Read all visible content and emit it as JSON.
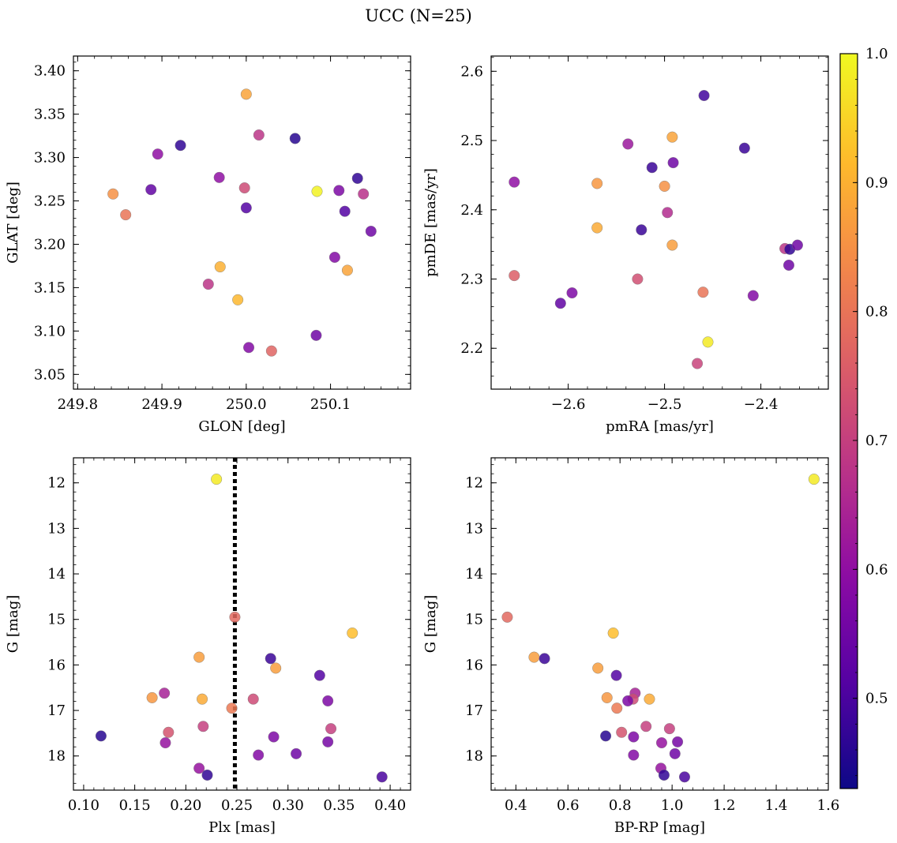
{
  "figure": {
    "title": "UCC (N=25)"
  },
  "colorbar": {
    "colormap": "plasma",
    "range": [
      0.43,
      1.0
    ],
    "ticks": [
      "0.5",
      "0.6",
      "0.7",
      "0.8",
      "0.9",
      "1.0"
    ],
    "tick_values": [
      0.5,
      0.6,
      0.7,
      0.8,
      0.9,
      1.0
    ]
  },
  "chart_data": [
    {
      "type": "scatter",
      "xlabel": "GLON [deg]",
      "ylabel": "GLAT [deg]",
      "xlim": [
        249.795,
        250.195
      ],
      "ylim": [
        3.033,
        3.417
      ],
      "xticks": [
        249.8,
        249.9,
        250.0,
        250.1
      ],
      "xtick_labels": [
        "249.8",
        "249.9",
        "250.0",
        "250.1"
      ],
      "yticks": [
        3.05,
        3.1,
        3.15,
        3.2,
        3.25,
        3.3,
        3.35,
        3.4
      ],
      "ytick_labels": [
        "3.05",
        "3.10",
        "3.15",
        "3.20",
        "3.25",
        "3.30",
        "3.35",
        "3.40"
      ],
      "points": [
        {
          "x": 250.0,
          "y": 3.373,
          "c": 0.88
        },
        {
          "x": 249.922,
          "y": 3.314,
          "c": 0.47
        },
        {
          "x": 250.058,
          "y": 3.322,
          "c": 0.46
        },
        {
          "x": 250.015,
          "y": 3.326,
          "c": 0.68
        },
        {
          "x": 249.895,
          "y": 3.304,
          "c": 0.6
        },
        {
          "x": 249.968,
          "y": 3.277,
          "c": 0.6
        },
        {
          "x": 249.842,
          "y": 3.258,
          "c": 0.85
        },
        {
          "x": 249.887,
          "y": 3.263,
          "c": 0.53
        },
        {
          "x": 249.998,
          "y": 3.265,
          "c": 0.72
        },
        {
          "x": 249.857,
          "y": 3.234,
          "c": 0.8
        },
        {
          "x": 250.0,
          "y": 3.242,
          "c": 0.51
        },
        {
          "x": 250.084,
          "y": 3.261,
          "c": 0.99
        },
        {
          "x": 250.11,
          "y": 3.262,
          "c": 0.57
        },
        {
          "x": 250.132,
          "y": 3.276,
          "c": 0.47
        },
        {
          "x": 250.139,
          "y": 3.258,
          "c": 0.67
        },
        {
          "x": 250.117,
          "y": 3.238,
          "c": 0.51
        },
        {
          "x": 250.148,
          "y": 3.215,
          "c": 0.55
        },
        {
          "x": 250.105,
          "y": 3.185,
          "c": 0.58
        },
        {
          "x": 250.12,
          "y": 3.17,
          "c": 0.88
        },
        {
          "x": 249.969,
          "y": 3.174,
          "c": 0.9
        },
        {
          "x": 249.955,
          "y": 3.154,
          "c": 0.68
        },
        {
          "x": 249.99,
          "y": 3.136,
          "c": 0.91
        },
        {
          "x": 250.083,
          "y": 3.095,
          "c": 0.55
        },
        {
          "x": 250.003,
          "y": 3.081,
          "c": 0.58
        },
        {
          "x": 250.03,
          "y": 3.077,
          "c": 0.77
        }
      ]
    },
    {
      "type": "scatter",
      "xlabel": "pmRA [mas/yr]",
      "ylabel": "pmDE [mas/yr]",
      "xlim": [
        -2.68,
        -2.33
      ],
      "ylim": [
        2.141,
        2.622
      ],
      "xticks": [
        -2.6,
        -2.5,
        -2.4
      ],
      "xtick_labels": [
        "−2.6",
        "−2.5",
        "−2.4"
      ],
      "yticks": [
        2.2,
        2.3,
        2.4,
        2.5,
        2.6
      ],
      "ytick_labels": [
        "2.2",
        "2.3",
        "2.4",
        "2.5",
        "2.6"
      ],
      "points": [
        {
          "x": -2.459,
          "y": 2.565,
          "c": 0.49
        },
        {
          "x": -2.538,
          "y": 2.495,
          "c": 0.62
        },
        {
          "x": -2.492,
          "y": 2.505,
          "c": 0.88
        },
        {
          "x": -2.417,
          "y": 2.489,
          "c": 0.48
        },
        {
          "x": -2.513,
          "y": 2.461,
          "c": 0.48
        },
        {
          "x": -2.491,
          "y": 2.468,
          "c": 0.55
        },
        {
          "x": -2.656,
          "y": 2.44,
          "c": 0.6
        },
        {
          "x": -2.57,
          "y": 2.438,
          "c": 0.86
        },
        {
          "x": -2.5,
          "y": 2.434,
          "c": 0.85
        },
        {
          "x": -2.497,
          "y": 2.396,
          "c": 0.66
        },
        {
          "x": -2.57,
          "y": 2.374,
          "c": 0.89
        },
        {
          "x": -2.524,
          "y": 2.371,
          "c": 0.48
        },
        {
          "x": -2.492,
          "y": 2.349,
          "c": 0.87
        },
        {
          "x": -2.375,
          "y": 2.344,
          "c": 0.68
        },
        {
          "x": -2.37,
          "y": 2.343,
          "c": 0.47
        },
        {
          "x": -2.362,
          "y": 2.349,
          "c": 0.55
        },
        {
          "x": -2.371,
          "y": 2.32,
          "c": 0.55
        },
        {
          "x": -2.656,
          "y": 2.305,
          "c": 0.76
        },
        {
          "x": -2.528,
          "y": 2.3,
          "c": 0.73
        },
        {
          "x": -2.596,
          "y": 2.28,
          "c": 0.57
        },
        {
          "x": -2.608,
          "y": 2.265,
          "c": 0.53
        },
        {
          "x": -2.46,
          "y": 2.281,
          "c": 0.8
        },
        {
          "x": -2.408,
          "y": 2.276,
          "c": 0.58
        },
        {
          "x": -2.455,
          "y": 2.209,
          "c": 0.98
        },
        {
          "x": -2.466,
          "y": 2.178,
          "c": 0.71
        }
      ]
    },
    {
      "type": "scatter",
      "xlabel": "Plx [mas]",
      "ylabel": "G [mag]",
      "xlim": [
        0.09,
        0.42
      ],
      "ylim": [
        18.75,
        11.45
      ],
      "xticks": [
        0.1,
        0.15,
        0.2,
        0.25,
        0.3,
        0.35,
        0.4
      ],
      "xtick_labels": [
        "0.10",
        "0.15",
        "0.20",
        "0.25",
        "0.30",
        "0.35",
        "0.40"
      ],
      "yticks": [
        12,
        13,
        14,
        15,
        16,
        17,
        18
      ],
      "ytick_labels": [
        "12",
        "13",
        "14",
        "15",
        "16",
        "17",
        "18"
      ],
      "vline": {
        "x": 0.248,
        "style": "dotted",
        "color": "#000000"
      },
      "points": [
        {
          "x": 0.23,
          "y": 11.92,
          "c": 0.98
        },
        {
          "x": 0.248,
          "y": 14.95,
          "c": 0.78
        },
        {
          "x": 0.363,
          "y": 15.3,
          "c": 0.92
        },
        {
          "x": 0.213,
          "y": 15.83,
          "c": 0.87
        },
        {
          "x": 0.283,
          "y": 15.86,
          "c": 0.48
        },
        {
          "x": 0.288,
          "y": 16.07,
          "c": 0.87
        },
        {
          "x": 0.331,
          "y": 16.23,
          "c": 0.51
        },
        {
          "x": 0.179,
          "y": 16.62,
          "c": 0.64
        },
        {
          "x": 0.167,
          "y": 16.72,
          "c": 0.86
        },
        {
          "x": 0.216,
          "y": 16.75,
          "c": 0.89
        },
        {
          "x": 0.266,
          "y": 16.75,
          "c": 0.72
        },
        {
          "x": 0.339,
          "y": 16.79,
          "c": 0.57
        },
        {
          "x": 0.245,
          "y": 16.95,
          "c": 0.81
        },
        {
          "x": 0.217,
          "y": 17.35,
          "c": 0.7
        },
        {
          "x": 0.342,
          "y": 17.4,
          "c": 0.7
        },
        {
          "x": 0.183,
          "y": 17.48,
          "c": 0.74
        },
        {
          "x": 0.117,
          "y": 17.56,
          "c": 0.46
        },
        {
          "x": 0.286,
          "y": 17.58,
          "c": 0.57
        },
        {
          "x": 0.18,
          "y": 17.71,
          "c": 0.61
        },
        {
          "x": 0.339,
          "y": 17.69,
          "c": 0.56
        },
        {
          "x": 0.308,
          "y": 17.95,
          "c": 0.55
        },
        {
          "x": 0.271,
          "y": 17.98,
          "c": 0.58
        },
        {
          "x": 0.213,
          "y": 18.27,
          "c": 0.61
        },
        {
          "x": 0.221,
          "y": 18.42,
          "c": 0.47
        },
        {
          "x": 0.392,
          "y": 18.46,
          "c": 0.5
        }
      ]
    },
    {
      "type": "scatter",
      "xlabel": "BP-RP [mag]",
      "ylabel": "G [mag]",
      "xlim": [
        0.305,
        1.6
      ],
      "ylim": [
        18.75,
        11.45
      ],
      "xticks": [
        0.4,
        0.6,
        0.8,
        1.0,
        1.2,
        1.4,
        1.6
      ],
      "xtick_labels": [
        "0.4",
        "0.6",
        "0.8",
        "1.0",
        "1.2",
        "1.4",
        "1.6"
      ],
      "yticks": [
        12,
        13,
        14,
        15,
        16,
        17,
        18
      ],
      "ytick_labels": [
        "12",
        "13",
        "14",
        "15",
        "16",
        "17",
        "18"
      ],
      "points": [
        {
          "x": 1.545,
          "y": 11.92,
          "c": 0.98
        },
        {
          "x": 0.367,
          "y": 14.95,
          "c": 0.78
        },
        {
          "x": 0.774,
          "y": 15.3,
          "c": 0.92
        },
        {
          "x": 0.47,
          "y": 15.83,
          "c": 0.87
        },
        {
          "x": 0.51,
          "y": 15.86,
          "c": 0.48
        },
        {
          "x": 0.715,
          "y": 16.07,
          "c": 0.87
        },
        {
          "x": 0.786,
          "y": 16.23,
          "c": 0.51
        },
        {
          "x": 0.858,
          "y": 16.62,
          "c": 0.64
        },
        {
          "x": 0.75,
          "y": 16.72,
          "c": 0.86
        },
        {
          "x": 0.913,
          "y": 16.75,
          "c": 0.89
        },
        {
          "x": 0.85,
          "y": 16.75,
          "c": 0.72
        },
        {
          "x": 0.83,
          "y": 16.79,
          "c": 0.57
        },
        {
          "x": 0.788,
          "y": 16.95,
          "c": 0.81
        },
        {
          "x": 0.9,
          "y": 17.35,
          "c": 0.7
        },
        {
          "x": 0.99,
          "y": 17.4,
          "c": 0.7
        },
        {
          "x": 0.806,
          "y": 17.48,
          "c": 0.74
        },
        {
          "x": 0.745,
          "y": 17.56,
          "c": 0.46
        },
        {
          "x": 0.852,
          "y": 17.58,
          "c": 0.57
        },
        {
          "x": 0.96,
          "y": 17.71,
          "c": 0.61
        },
        {
          "x": 1.021,
          "y": 17.69,
          "c": 0.56
        },
        {
          "x": 1.011,
          "y": 17.95,
          "c": 0.55
        },
        {
          "x": 0.852,
          "y": 17.98,
          "c": 0.58
        },
        {
          "x": 0.957,
          "y": 18.27,
          "c": 0.61
        },
        {
          "x": 0.969,
          "y": 18.42,
          "c": 0.47
        },
        {
          "x": 1.048,
          "y": 18.46,
          "c": 0.5
        }
      ]
    }
  ]
}
